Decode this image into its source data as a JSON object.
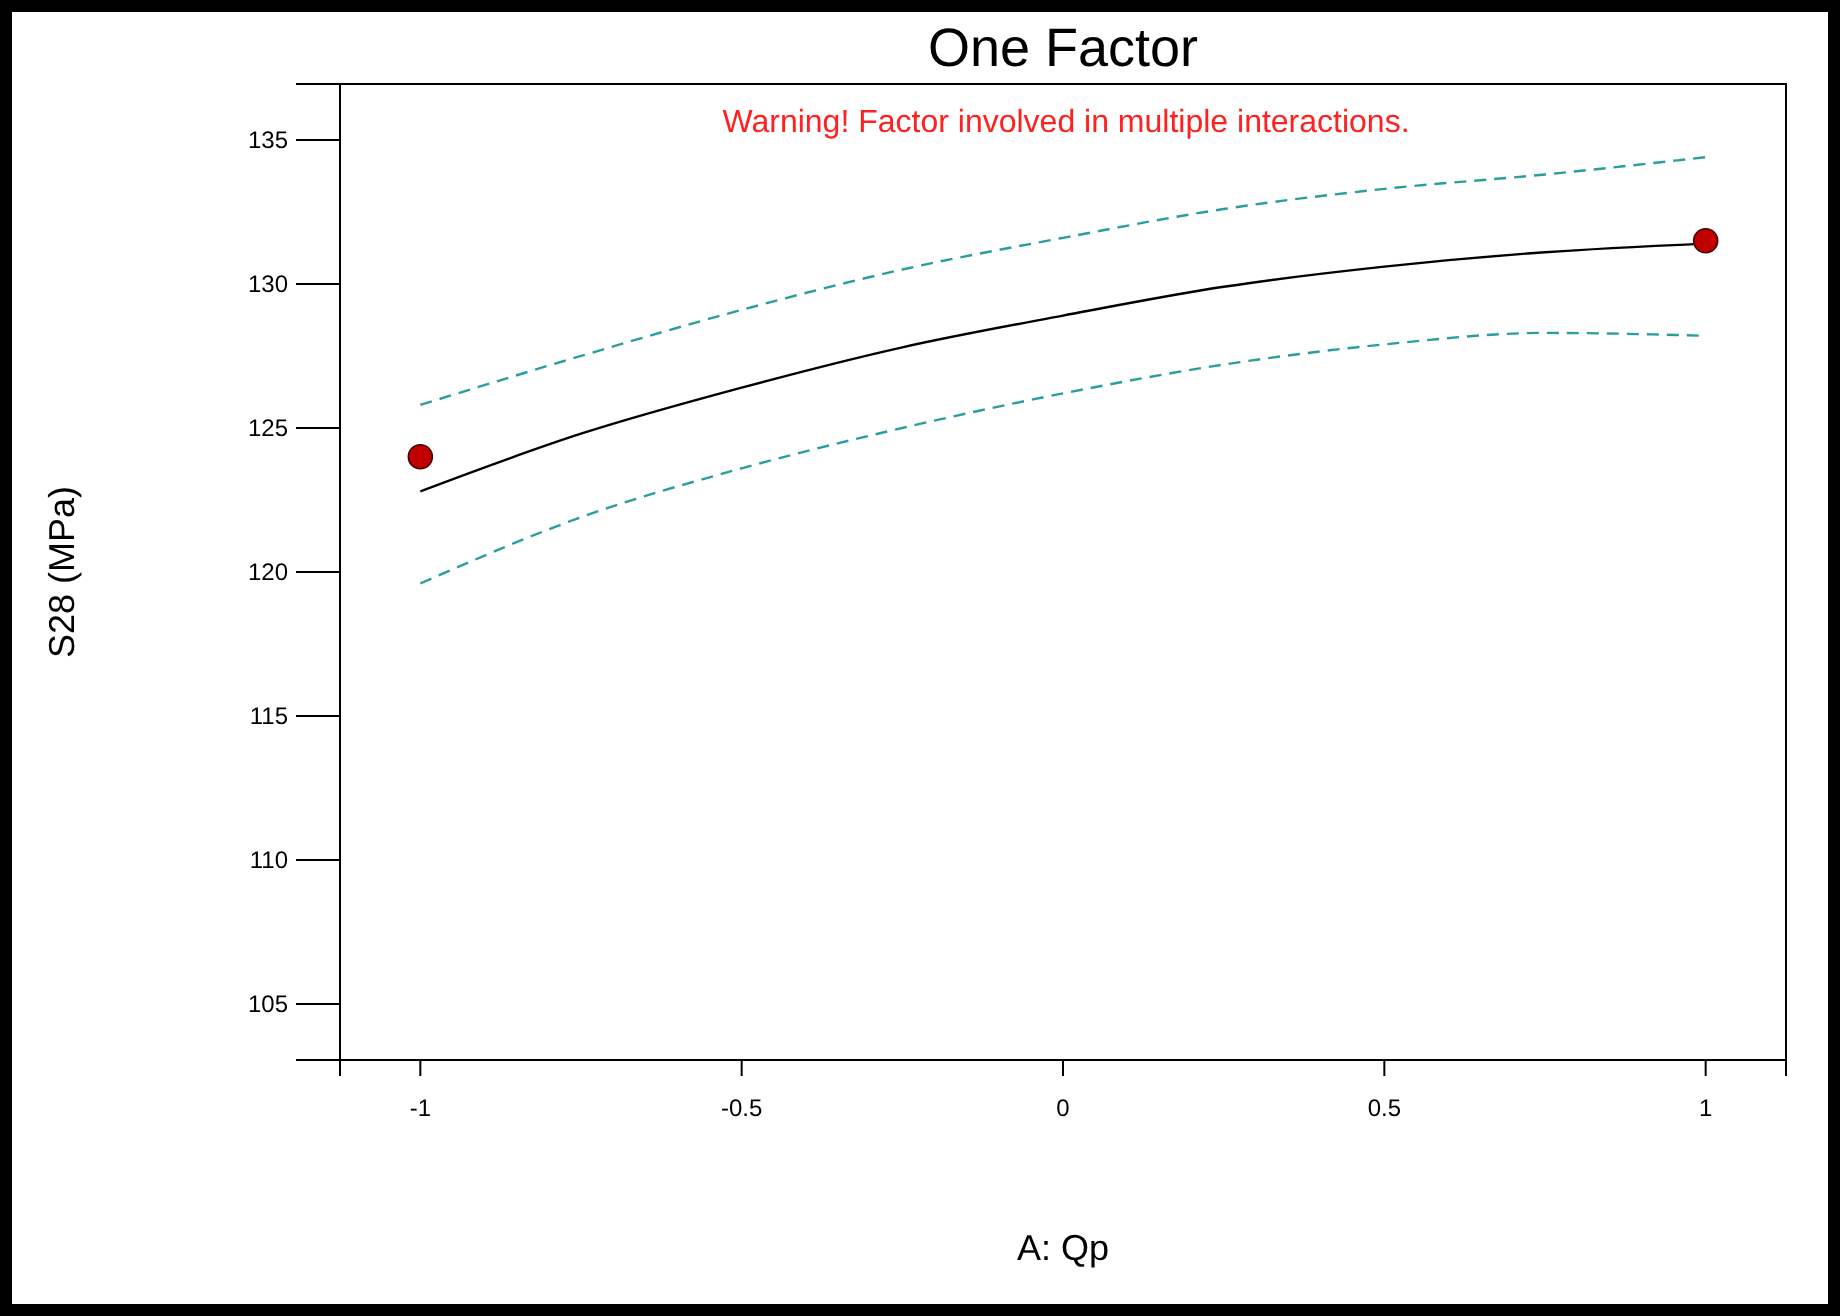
{
  "chart_data": {
    "type": "line",
    "title": "One Factor",
    "xlabel": "A: Qp",
    "ylabel": "S28 (MPa)",
    "annotations": [
      "Warning! Factor involved in multiple interactions."
    ],
    "xlim": [
      -1.125,
      1.125
    ],
    "xticks": [
      -1,
      -0.5,
      0,
      0.5,
      1
    ],
    "ylim": [
      103.06,
      136.94
    ],
    "yticks": [
      105,
      110,
      115,
      120,
      125,
      130,
      135
    ],
    "grid": false,
    "marker": "none",
    "series": [
      {
        "color": "#000000",
        "line_style": "solid",
        "x": [
          -1,
          -0.75,
          -0.5,
          -0.25,
          0,
          0.25,
          0.5,
          0.75,
          1
        ],
        "values": [
          122.8,
          124.8,
          126.4,
          127.8,
          128.9,
          129.9,
          130.6,
          131.1,
          131.4
        ]
      },
      {
        "color": "#2a9d9d",
        "line_style": "dashed",
        "x": [
          -1,
          -0.75,
          -0.5,
          -0.25,
          0,
          0.25,
          0.5,
          0.75,
          1
        ],
        "values": [
          125.8,
          127.5,
          129.1,
          130.5,
          131.6,
          132.6,
          133.3,
          133.8,
          134.4
        ]
      },
      {
        "color": "#2a9d9d",
        "line_style": "dashed",
        "x": [
          -1,
          -0.75,
          -0.5,
          -0.25,
          0,
          0.25,
          0.5,
          0.75,
          1
        ],
        "values": [
          119.6,
          121.9,
          123.6,
          125.0,
          126.2,
          127.2,
          127.9,
          128.3,
          128.2
        ]
      },
      {
        "type": "scatter",
        "color": "#c00000",
        "marker": "circle",
        "x": [
          -1,
          1
        ],
        "values": [
          124.0,
          131.5
        ]
      }
    ]
  }
}
